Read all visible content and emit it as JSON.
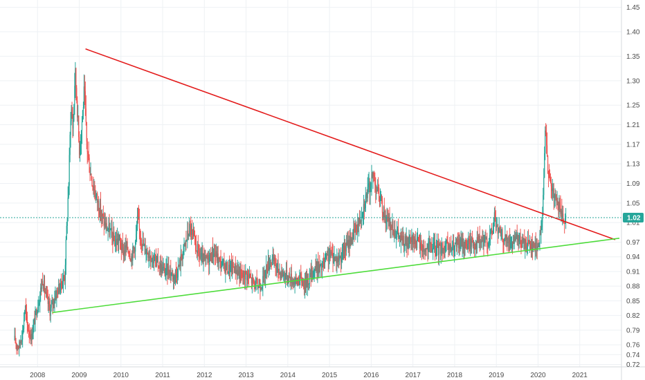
{
  "chart_data": {
    "type": "candlestick",
    "title": "",
    "xlabel": "",
    "ylabel": "",
    "x_range": [
      2007.1,
      2022.0
    ],
    "ylim": [
      0.715,
      1.465
    ],
    "y_ticks": [
      0.72,
      0.74,
      0.76,
      0.79,
      0.82,
      0.85,
      0.88,
      0.91,
      0.94,
      0.97,
      1.01,
      1.05,
      1.09,
      1.13,
      1.17,
      1.21,
      1.25,
      1.3,
      1.35,
      1.4,
      1.45
    ],
    "y_tick_labels": [
      "0.72",
      "0.74",
      "0.76",
      "0.79",
      "0.82",
      "0.85",
      "0.88",
      "0.91",
      "0.94",
      "0.97",
      "1.01",
      "1.05",
      "1.09",
      "1.13",
      "1.17",
      "1.21",
      "1.25",
      "1.30",
      "1.35",
      "1.40",
      "1.45"
    ],
    "x_ticks": [
      2008,
      2009,
      2010,
      2011,
      2012,
      2013,
      2014,
      2015,
      2016,
      2017,
      2018,
      2019,
      2020,
      2021
    ],
    "x_tick_labels": [
      "2008",
      "2009",
      "2010",
      "2011",
      "2012",
      "2013",
      "2014",
      "2015",
      "2016",
      "2017",
      "2018",
      "2019",
      "2020",
      "2021"
    ],
    "grid": true,
    "last_price": 1.02,
    "last_price_label": "1.02",
    "colors": {
      "up": "#26a69a",
      "down": "#ef5350",
      "resistance": "#e31b1b",
      "support": "#4ddc3a",
      "grid": "#eef1f4",
      "last_price": "#26a69a"
    },
    "price_path": [
      [
        2007.45,
        0.77
      ],
      [
        2007.55,
        0.755
      ],
      [
        2007.65,
        0.79
      ],
      [
        2007.7,
        0.84
      ],
      [
        2007.75,
        0.8
      ],
      [
        2007.85,
        0.775
      ],
      [
        2007.95,
        0.82
      ],
      [
        2008.05,
        0.86
      ],
      [
        2008.12,
        0.895
      ],
      [
        2008.2,
        0.86
      ],
      [
        2008.3,
        0.83
      ],
      [
        2008.4,
        0.855
      ],
      [
        2008.5,
        0.875
      ],
      [
        2008.6,
        0.89
      ],
      [
        2008.65,
        0.9
      ],
      [
        2008.7,
        1.0
      ],
      [
        2008.75,
        1.1
      ],
      [
        2008.8,
        1.25
      ],
      [
        2008.85,
        1.2
      ],
      [
        2008.9,
        1.32
      ],
      [
        2008.95,
        1.25
      ],
      [
        2009.0,
        1.16
      ],
      [
        2009.05,
        1.2
      ],
      [
        2009.12,
        1.28
      ],
      [
        2009.18,
        1.17
      ],
      [
        2009.25,
        1.12
      ],
      [
        2009.35,
        1.08
      ],
      [
        2009.45,
        1.05
      ],
      [
        2009.55,
        1.02
      ],
      [
        2009.65,
        1.0
      ],
      [
        2009.75,
        0.99
      ],
      [
        2009.85,
        0.97
      ],
      [
        2009.95,
        0.975
      ],
      [
        2010.05,
        0.95
      ],
      [
        2010.15,
        0.96
      ],
      [
        2010.25,
        0.94
      ],
      [
        2010.35,
        0.97
      ],
      [
        2010.4,
        1.02
      ],
      [
        2010.45,
        0.99
      ],
      [
        2010.55,
        0.96
      ],
      [
        2010.65,
        0.95
      ],
      [
        2010.75,
        0.94
      ],
      [
        2010.85,
        0.93
      ],
      [
        2010.95,
        0.92
      ],
      [
        2011.05,
        0.91
      ],
      [
        2011.15,
        0.915
      ],
      [
        2011.25,
        0.9
      ],
      [
        2011.35,
        0.91
      ],
      [
        2011.45,
        0.94
      ],
      [
        2011.55,
        0.97
      ],
      [
        2011.65,
        1.0
      ],
      [
        2011.72,
        0.98
      ],
      [
        2011.8,
        0.96
      ],
      [
        2011.9,
        0.94
      ],
      [
        2012.0,
        0.93
      ],
      [
        2012.1,
        0.935
      ],
      [
        2012.2,
        0.95
      ],
      [
        2012.3,
        0.94
      ],
      [
        2012.4,
        0.925
      ],
      [
        2012.5,
        0.92
      ],
      [
        2012.6,
        0.915
      ],
      [
        2012.7,
        0.92
      ],
      [
        2012.8,
        0.91
      ],
      [
        2012.9,
        0.9
      ],
      [
        2013.0,
        0.905
      ],
      [
        2013.1,
        0.895
      ],
      [
        2013.2,
        0.885
      ],
      [
        2013.3,
        0.88
      ],
      [
        2013.4,
        0.89
      ],
      [
        2013.5,
        0.92
      ],
      [
        2013.6,
        0.935
      ],
      [
        2013.7,
        0.925
      ],
      [
        2013.8,
        0.91
      ],
      [
        2013.9,
        0.905
      ],
      [
        2014.0,
        0.9
      ],
      [
        2014.1,
        0.895
      ],
      [
        2014.2,
        0.89
      ],
      [
        2014.3,
        0.895
      ],
      [
        2014.4,
        0.885
      ],
      [
        2014.5,
        0.895
      ],
      [
        2014.6,
        0.91
      ],
      [
        2014.7,
        0.92
      ],
      [
        2014.8,
        0.915
      ],
      [
        2014.9,
        0.93
      ],
      [
        2015.0,
        0.945
      ],
      [
        2015.1,
        0.94
      ],
      [
        2015.2,
        0.935
      ],
      [
        2015.3,
        0.945
      ],
      [
        2015.4,
        0.96
      ],
      [
        2015.5,
        0.975
      ],
      [
        2015.6,
        0.99
      ],
      [
        2015.7,
        1.01
      ],
      [
        2015.8,
        1.04
      ],
      [
        2015.9,
        1.07
      ],
      [
        2016.0,
        1.09
      ],
      [
        2016.05,
        1.11
      ],
      [
        2016.1,
        1.09
      ],
      [
        2016.2,
        1.06
      ],
      [
        2016.3,
        1.03
      ],
      [
        2016.4,
        1.01
      ],
      [
        2016.5,
        1.0
      ],
      [
        2016.6,
        0.99
      ],
      [
        2016.7,
        0.975
      ],
      [
        2016.8,
        0.97
      ],
      [
        2016.9,
        0.965
      ],
      [
        2017.0,
        0.975
      ],
      [
        2017.1,
        0.97
      ],
      [
        2017.2,
        0.96
      ],
      [
        2017.3,
        0.955
      ],
      [
        2017.4,
        0.96
      ],
      [
        2017.5,
        0.958
      ],
      [
        2017.6,
        0.955
      ],
      [
        2017.7,
        0.96
      ],
      [
        2017.8,
        0.958
      ],
      [
        2017.9,
        0.955
      ],
      [
        2018.0,
        0.96
      ],
      [
        2018.1,
        0.965
      ],
      [
        2018.2,
        0.968
      ],
      [
        2018.3,
        0.965
      ],
      [
        2018.4,
        0.97
      ],
      [
        2018.5,
        0.968
      ],
      [
        2018.6,
        0.972
      ],
      [
        2018.7,
        0.968
      ],
      [
        2018.8,
        0.975
      ],
      [
        2018.9,
        0.99
      ],
      [
        2018.95,
        1.03
      ],
      [
        2019.0,
        1.0
      ],
      [
        2019.1,
        0.985
      ],
      [
        2019.2,
        0.975
      ],
      [
        2019.3,
        0.97
      ],
      [
        2019.4,
        0.965
      ],
      [
        2019.5,
        0.975
      ],
      [
        2019.6,
        0.97
      ],
      [
        2019.7,
        0.965
      ],
      [
        2019.8,
        0.97
      ],
      [
        2019.9,
        0.96
      ],
      [
        2020.0,
        0.965
      ],
      [
        2020.05,
        0.975
      ],
      [
        2020.12,
        1.05
      ],
      [
        2020.18,
        1.22
      ],
      [
        2020.25,
        1.1
      ],
      [
        2020.32,
        1.08
      ],
      [
        2020.4,
        1.06
      ],
      [
        2020.48,
        1.04
      ],
      [
        2020.55,
        1.03
      ],
      [
        2020.62,
        1.02
      ],
      [
        2020.68,
        1.02
      ]
    ],
    "trendlines": [
      {
        "kind": "resistance",
        "from": [
          2009.15,
          1.365
        ],
        "to": [
          2021.85,
          0.975
        ]
      },
      {
        "kind": "support",
        "from": [
          2008.35,
          0.826
        ],
        "to": [
          2021.95,
          0.978
        ]
      }
    ]
  }
}
